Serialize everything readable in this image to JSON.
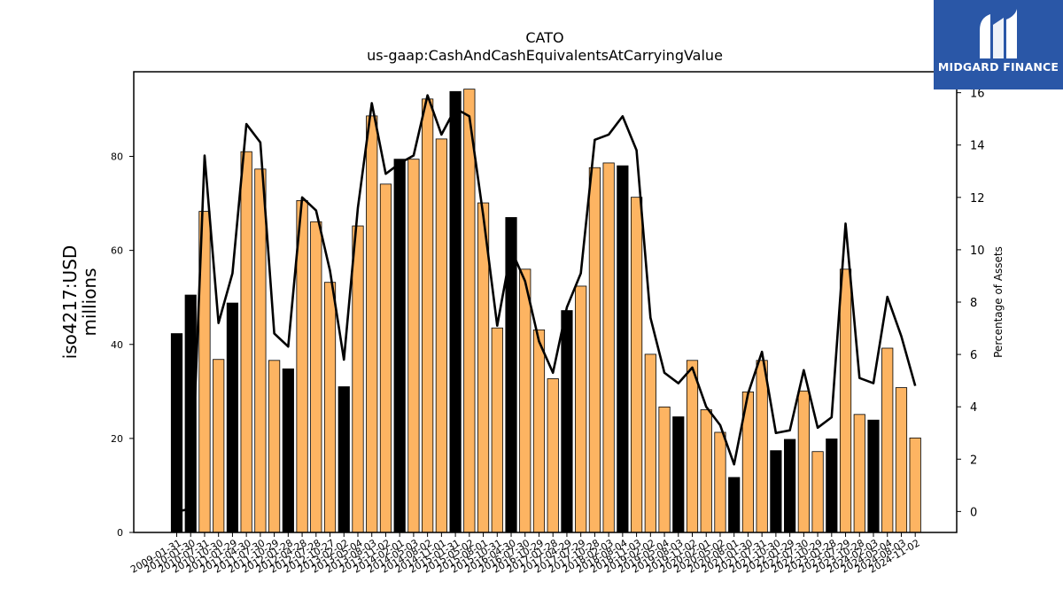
{
  "chart_data": {
    "type": "bar",
    "title": "CATO",
    "subtitle": "us-gaap:CashAndCashEquivalentsAtCarryingValue",
    "ylabel": "iso4217:USD\nmillions",
    "y2label": "Percentage of Assets",
    "ylim": [
      0,
      98
    ],
    "y2lim": [
      -0.8,
      16.8
    ],
    "yticks": [
      0,
      20,
      40,
      60,
      80
    ],
    "y2ticks": [
      0,
      2,
      4,
      6,
      8,
      10,
      12,
      14,
      16
    ],
    "categories": [
      "2009-01-31",
      "2010-01-30",
      "2010-07-31",
      "2010-10-30",
      "2011-01-29",
      "2011-04-30",
      "2011-07-30",
      "2011-10-29",
      "2012-01-28",
      "2012-04-28",
      "2012-07-28",
      "2012-10-27",
      "2013-02-02",
      "2013-05-04",
      "2013-08-03",
      "2013-11-02",
      "2014-02-01",
      "2014-05-03",
      "2014-08-02",
      "2014-11-01",
      "2015-01-31",
      "2015-05-02",
      "2015-08-01",
      "2015-10-31",
      "2016-04-30",
      "2016-07-30",
      "2016-10-29",
      "2017-01-28",
      "2017-04-29",
      "2017-07-29",
      "2017-10-28",
      "2018-02-03",
      "2018-08-04",
      "2018-11-03",
      "2019-02-02",
      "2019-05-04",
      "2019-08-03",
      "2019-11-02",
      "2020-02-01",
      "2020-05-02",
      "2020-08-01",
      "2021-01-30",
      "2021-07-31",
      "2021-10-30",
      "2022-01-29",
      "2022-07-30",
      "2022-10-29",
      "2023-01-28",
      "2023-07-29",
      "2023-10-28",
      "2024-02-03",
      "2024-05-04",
      "2024-08-03",
      "2024-11-02"
    ],
    "series": [
      {
        "type": "bar",
        "values": [
          42.3,
          50.5,
          68.3,
          36.8,
          48.8,
          81.0,
          77.3,
          36.6,
          34.8,
          70.6,
          66.1,
          53.2,
          31.0,
          65.2,
          88.6,
          74.1,
          79.4,
          79.4,
          92.2,
          83.7,
          93.8,
          94.3,
          70.1,
          43.5,
          67.0,
          56.0,
          43.1,
          32.7,
          47.2,
          52.4,
          77.6,
          78.6,
          78.0,
          71.3,
          37.9,
          26.7,
          24.6,
          36.6,
          26.1,
          21.3,
          11.7,
          29.9,
          36.6,
          17.4,
          19.8,
          30.1,
          17.2,
          19.9,
          56.0,
          25.1,
          23.9,
          39.2,
          30.8,
          20.1
        ],
        "highlight": [
          true,
          true,
          false,
          false,
          true,
          false,
          false,
          false,
          true,
          false,
          false,
          false,
          true,
          false,
          false,
          false,
          true,
          false,
          false,
          false,
          true,
          false,
          false,
          false,
          true,
          false,
          false,
          false,
          true,
          false,
          false,
          false,
          true,
          false,
          false,
          false,
          true,
          false,
          false,
          false,
          true,
          false,
          false,
          true,
          true,
          false,
          false,
          true,
          false,
          false,
          true,
          false,
          false,
          false
        ]
      },
      {
        "type": "line",
        "axis": "right",
        "values": [
          0.0,
          0.1,
          13.6,
          7.2,
          9.1,
          14.8,
          14.1,
          6.8,
          6.3,
          12.0,
          11.5,
          9.2,
          5.8,
          11.6,
          15.6,
          12.9,
          13.3,
          13.6,
          15.9,
          14.4,
          15.4,
          15.1,
          11.3,
          7.1,
          10.0,
          8.8,
          6.5,
          5.3,
          7.8,
          9.1,
          14.2,
          14.4,
          15.1,
          13.8,
          7.4,
          5.3,
          4.9,
          5.5,
          4.0,
          3.3,
          1.8,
          4.5,
          6.1,
          3.0,
          3.1,
          5.4,
          3.2,
          3.6,
          11.0,
          5.1,
          4.9,
          8.2,
          6.7,
          4.8
        ]
      }
    ],
    "colors": {
      "bar": "#fdb462",
      "highlight": "#000000",
      "line": "#000000"
    }
  },
  "logo": {
    "text": "MIDGARD FINANCE",
    "icon": "midgard-logo-icon",
    "bg": "#2a57a7"
  }
}
